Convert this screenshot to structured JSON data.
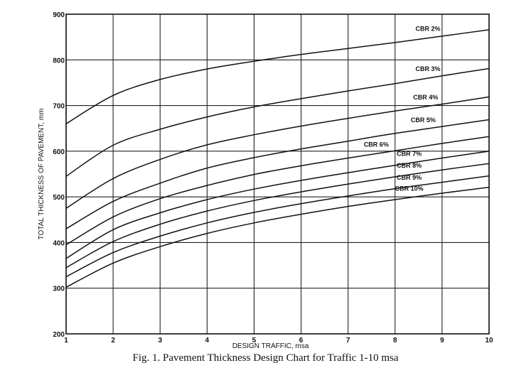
{
  "chart_data": {
    "type": "line",
    "xlabel": "DESIGN TRAFFIC, msa",
    "ylabel": "TOTAL THICKNESS OF PAVEMENT, mm",
    "xlim": [
      1,
      10
    ],
    "ylim": [
      200,
      900
    ],
    "x_ticks": [
      "1",
      "2",
      "3",
      "4",
      "5",
      "6",
      "7",
      "8",
      "9",
      "10"
    ],
    "y_ticks": [
      "200",
      "300",
      "400",
      "500",
      "600",
      "700",
      "800",
      "900"
    ],
    "grid": true,
    "x": [
      1,
      2,
      3,
      4,
      5,
      6,
      7,
      8,
      9,
      10
    ],
    "series": [
      {
        "name": "CBR 2%",
        "values": [
          660,
          722,
          757,
          780,
          797,
          812,
          825,
          838,
          852,
          866
        ]
      },
      {
        "name": "CBR 3%",
        "values": [
          545,
          613,
          648,
          675,
          697,
          715,
          732,
          748,
          765,
          781
        ]
      },
      {
        "name": "CBR 4%",
        "values": [
          475,
          540,
          582,
          614,
          636,
          655,
          672,
          688,
          703,
          719
        ]
      },
      {
        "name": "CBR 5%",
        "values": [
          430,
          490,
          530,
          563,
          586,
          605,
          622,
          639,
          654,
          669
        ]
      },
      {
        "name": "CBR 6%",
        "values": [
          395,
          456,
          496,
          525,
          549,
          568,
          585,
          601,
          617,
          632
        ]
      },
      {
        "name": "CBR 7%",
        "values": [
          365,
          428,
          465,
          494,
          517,
          536,
          553,
          569,
          585,
          600
        ]
      },
      {
        "name": "CBR 8%",
        "values": [
          345,
          402,
          440,
          469,
          492,
          511,
          528,
          544,
          559,
          573
        ]
      },
      {
        "name": "CBR 9%",
        "values": [
          325,
          378,
          414,
          443,
          466,
          485,
          502,
          518,
          532,
          546
        ]
      },
      {
        "name": "CBR 10%",
        "values": [
          302,
          355,
          391,
          420,
          443,
          462,
          479,
          494,
          508,
          521
        ]
      }
    ],
    "title": "Fig. 1. Pavement Thickness Design Chart for Traffic 1-10 msa"
  }
}
